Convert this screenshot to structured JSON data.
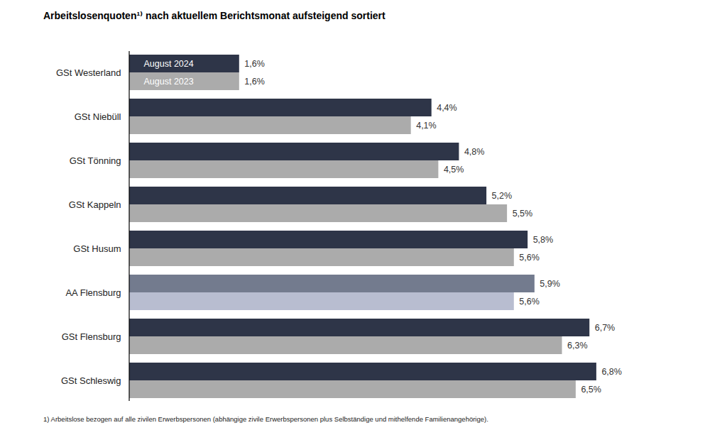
{
  "chart_data": {
    "type": "bar",
    "title": "Arbeitslosenquoten¹⁾ nach aktuellem Berichtsmonat aufsteigend sortiert",
    "footnote": "1) Arbeitslose bezogen auf alle zivilen Erwerbspersonen (abhängige zivile Erwerbspersonen plus Selbständige und mithelfende Familienangehörige).",
    "orientation": "horizontal",
    "data_labels": true,
    "tick_labels": "y",
    "grid": false,
    "categories": [
      "GSt Westerland",
      "GSt Niebüll",
      "GSt Tönning",
      "GSt Kappeln",
      "GSt Husum",
      "AA Flensburg",
      "GSt Flensburg",
      "GSt Schleswig"
    ],
    "xlim": [
      0,
      8
    ],
    "xticks": [],
    "series": [
      {
        "name": "August 2024",
        "colors": [
          "#2e3548",
          "#2e3548",
          "#2e3548",
          "#2e3548",
          "#2e3548",
          "#737b8e",
          "#2e3548",
          "#2e3548"
        ],
        "values": [
          1.6,
          4.4,
          4.8,
          5.2,
          5.8,
          5.9,
          6.7,
          6.8
        ],
        "value_labels": [
          "1,6%",
          "4,4%",
          "4,8%",
          "5,2%",
          "5,8%",
          "5,9%",
          "6,7%",
          "6,8%"
        ]
      },
      {
        "name": "August 2023",
        "colors": [
          "#ababab",
          "#ababab",
          "#ababab",
          "#ababab",
          "#ababab",
          "#b8bdd0",
          "#ababab",
          "#ababab"
        ],
        "values": [
          1.6,
          4.1,
          4.5,
          5.5,
          5.6,
          5.6,
          6.3,
          6.5
        ],
        "value_labels": [
          "1,6%",
          "4,1%",
          "4,5%",
          "5,5%",
          "5,6%",
          "5,6%",
          "6,3%",
          "6,5%"
        ]
      }
    ]
  }
}
